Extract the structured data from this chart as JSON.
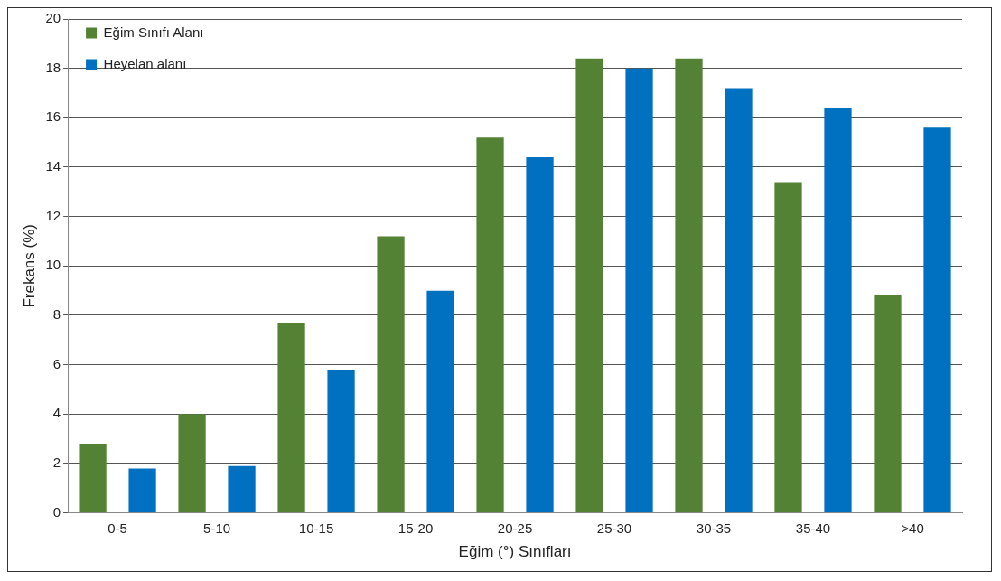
{
  "chart_data": {
    "type": "bar",
    "xlabel": "Eğim (°) Sınıfları",
    "ylabel": "Frekans (%)",
    "categories": [
      "0-5",
      "5-10",
      "10-15",
      "15-20",
      "20-25",
      "25-30",
      "30-35",
      "35-40",
      ">40"
    ],
    "series": [
      {
        "name": "Eğim Sınıfı Alanı",
        "color": "#548235",
        "values": [
          2.8,
          4.0,
          7.7,
          11.2,
          15.2,
          18.4,
          18.4,
          13.4,
          8.8
        ]
      },
      {
        "name": "Heyelan alanı",
        "color": "#0070c0",
        "values": [
          1.8,
          1.9,
          5.8,
          9.0,
          14.4,
          18.0,
          17.2,
          16.4,
          15.6
        ]
      }
    ],
    "ylim": [
      0,
      20
    ],
    "yticks": [
      0,
      2,
      4,
      6,
      8,
      10,
      12,
      14,
      16,
      18,
      20
    ],
    "grid": "y",
    "legend": "top left"
  }
}
